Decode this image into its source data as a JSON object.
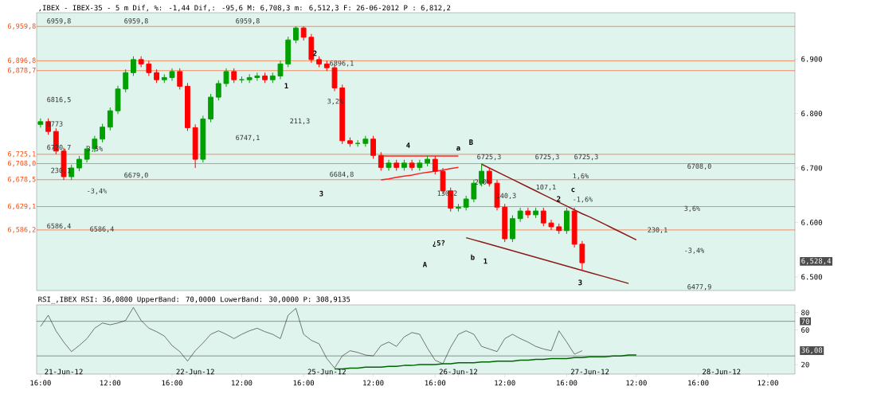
{
  "chart_data": [
    {
      "type": "candlestick",
      "title": ",IBEX - IBEX-35 - 5 m Dif, %: -1,44 Dif,: -95,6 M: 6,708,3 m: 6,512,3 F: 26-06-2012 P : 6,812,2",
      "ylim": [
        6475,
        6985
      ],
      "tick_labels": "y",
      "yticks": [
        {
          "value": 6500,
          "label": "6.500"
        },
        {
          "value": 6600,
          "label": "6.600"
        },
        {
          "value": 6700,
          "label": "6.700"
        },
        {
          "value": 6800,
          "label": "6.800"
        },
        {
          "value": 6900,
          "label": "6.900"
        }
      ],
      "categories": [
        null,
        null,
        null,
        null,
        null,
        null,
        null,
        null,
        null,
        null,
        null,
        null,
        null,
        null,
        null,
        null,
        null,
        null,
        null,
        null,
        null,
        null,
        null,
        null,
        null,
        null,
        null,
        null,
        null,
        null,
        null,
        null,
        null,
        null,
        null,
        null,
        null,
        null,
        null,
        null,
        null,
        null,
        null,
        null,
        null,
        null,
        null,
        null,
        null,
        null,
        null,
        null,
        null,
        null,
        null,
        null,
        null,
        null,
        null,
        null,
        null,
        null,
        null,
        null,
        null,
        null,
        null,
        null,
        null,
        null,
        null,
        null,
        null,
        null,
        null,
        null,
        null,
        null,
        null,
        null,
        null,
        null,
        null,
        null,
        null,
        null,
        null,
        null,
        null,
        null,
        null,
        null,
        null,
        null,
        null,
        null,
        null,
        null
      ],
      "ohlc": [
        [
          6780,
          6791,
          6774,
          6785
        ],
        [
          6785,
          6791,
          6761,
          6767
        ],
        [
          6767,
          6773,
          6725,
          6731
        ],
        [
          6731,
          6737,
          6678,
          6684
        ],
        [
          6684,
          6706,
          6678,
          6700
        ],
        [
          6700,
          6722,
          6694,
          6716
        ],
        [
          6716,
          6741,
          6710,
          6735
        ],
        [
          6735,
          6759,
          6729,
          6753
        ],
        [
          6753,
          6781,
          6747,
          6775
        ],
        [
          6775,
          6811,
          6769,
          6805
        ],
        [
          6805,
          6851,
          6799,
          6845
        ],
        [
          6845,
          6881,
          6839,
          6875
        ],
        [
          6875,
          6905,
          6869,
          6899
        ],
        [
          6899,
          6905,
          6885,
          6891
        ],
        [
          6891,
          6897,
          6869,
          6875
        ],
        [
          6875,
          6881,
          6856,
          6862
        ],
        [
          6862,
          6872,
          6856,
          6866
        ],
        [
          6866,
          6883,
          6860,
          6877
        ],
        [
          6877,
          6883,
          6844,
          6850
        ],
        [
          6850,
          6856,
          6768,
          6774
        ],
        [
          6774,
          6780,
          6700,
          6716
        ],
        [
          6716,
          6796,
          6710,
          6790
        ],
        [
          6790,
          6836,
          6784,
          6830
        ],
        [
          6830,
          6861,
          6824,
          6855
        ],
        [
          6855,
          6883,
          6849,
          6877
        ],
        [
          6877,
          6883,
          6856,
          6862
        ],
        [
          6862,
          6868,
          6856,
          6862
        ],
        [
          6862,
          6872,
          6856,
          6866
        ],
        [
          6866,
          6875,
          6860,
          6869
        ],
        [
          6869,
          6875,
          6856,
          6862
        ],
        [
          6862,
          6875,
          6856,
          6869
        ],
        [
          6869,
          6897,
          6863,
          6891
        ],
        [
          6891,
          6941,
          6885,
          6935
        ],
        [
          6935,
          6960,
          6929,
          6957
        ],
        [
          6957,
          6960,
          6934,
          6940
        ],
        [
          6940,
          6946,
          6893,
          6899
        ],
        [
          6899,
          6905,
          6885,
          6891
        ],
        [
          6891,
          6897,
          6878,
          6884
        ],
        [
          6884,
          6890,
          6841,
          6847
        ],
        [
          6847,
          6853,
          6744,
          6750
        ],
        [
          6750,
          6756,
          6739,
          6745
        ],
        [
          6745,
          6751,
          6739,
          6745
        ],
        [
          6745,
          6759,
          6739,
          6753
        ],
        [
          6753,
          6759,
          6717,
          6723
        ],
        [
          6723,
          6729,
          6695,
          6701
        ],
        [
          6701,
          6715,
          6695,
          6709
        ],
        [
          6709,
          6715,
          6695,
          6701
        ],
        [
          6701,
          6715,
          6695,
          6709
        ],
        [
          6709,
          6715,
          6695,
          6701
        ],
        [
          6701,
          6715,
          6695,
          6709
        ],
        [
          6709,
          6722,
          6703,
          6716
        ],
        [
          6716,
          6722,
          6688,
          6694
        ],
        [
          6694,
          6700,
          6652,
          6658
        ],
        [
          6658,
          6664,
          6620,
          6626
        ],
        [
          6626,
          6634,
          6620,
          6628
        ],
        [
          6628,
          6649,
          6622,
          6643
        ],
        [
          6643,
          6678,
          6637,
          6672
        ],
        [
          6672,
          6708,
          6666,
          6694
        ],
        [
          6694,
          6700,
          6666,
          6672
        ],
        [
          6672,
          6678,
          6622,
          6628
        ],
        [
          6628,
          6634,
          6564,
          6570
        ],
        [
          6570,
          6613,
          6564,
          6607
        ],
        [
          6607,
          6627,
          6601,
          6621
        ],
        [
          6621,
          6627,
          6608,
          6614
        ],
        [
          6614,
          6627,
          6608,
          6621
        ],
        [
          6621,
          6627,
          6593,
          6599
        ],
        [
          6599,
          6605,
          6586,
          6592
        ],
        [
          6592,
          6598,
          6579,
          6585
        ],
        [
          6585,
          6627,
          6579,
          6621
        ],
        [
          6621,
          6627,
          6554,
          6560
        ],
        [
          6560,
          6566,
          6512,
          6526
        ],
        null,
        null,
        null,
        null,
        null,
        null,
        null,
        null,
        null,
        null,
        null,
        null,
        null,
        null,
        null,
        null,
        null,
        null,
        null,
        null,
        null,
        null,
        null,
        null,
        null,
        null,
        null
      ],
      "colors": [
        "#00a000",
        "#ff0000",
        "#ff0000",
        "#ff0000",
        "#00a000",
        "#00a000",
        "#00a000",
        "#00a000",
        "#00a000",
        "#00a000",
        "#00a000",
        "#00a000",
        "#00a000",
        "#ff0000",
        "#ff0000",
        "#ff0000",
        "#00a000",
        "#00a000",
        "#ff0000",
        "#ff0000",
        "#ff0000",
        "#00a000",
        "#00a000",
        "#00a000",
        "#00a000",
        "#ff0000",
        "#00a000",
        "#00a000",
        "#00a000",
        "#ff0000",
        "#00a000",
        "#00a000",
        "#00a000",
        "#00a000",
        "#ff0000",
        "#ff0000",
        "#ff0000",
        "#ff0000",
        "#ff0000",
        "#ff0000",
        "#ff0000",
        "#00a000",
        "#00a000",
        "#ff0000",
        "#ff0000",
        "#00a000",
        "#ff0000",
        "#00a000",
        "#ff0000",
        "#00a000",
        "#00a000",
        "#ff0000",
        "#ff0000",
        "#ff0000",
        "#00a000",
        "#00a000",
        "#00a000",
        "#00a000",
        "#ff0000",
        "#ff0000",
        "#ff0000",
        "#00a000",
        "#00a000",
        "#ff0000",
        "#00a000",
        "#ff0000",
        "#ff0000",
        "#ff0000",
        "#00a000",
        "#ff0000",
        "#ff0000",
        null,
        null,
        null,
        null,
        null,
        null,
        null,
        null,
        null,
        null,
        null,
        null,
        null,
        null,
        null,
        null,
        null,
        null,
        null,
        null,
        null,
        null,
        null,
        null,
        null,
        null,
        null
      ],
      "series": [
        {
          "type": "line",
          "color": "#8b1a1a",
          "values": [
            null,
            null,
            null,
            null,
            null,
            null,
            null,
            null,
            null,
            null,
            null,
            null,
            null,
            null,
            null,
            null,
            null,
            null,
            null,
            null,
            null,
            null,
            null,
            null,
            null,
            null,
            null,
            null,
            null,
            null,
            null,
            null,
            null,
            null,
            null,
            null,
            null,
            null,
            null,
            null,
            null,
            null,
            null,
            null,
            null,
            null,
            null,
            null,
            null,
            null,
            null,
            null,
            null,
            null,
            null,
            null,
            null,
            6707,
            6700,
            6693,
            6686,
            6679,
            6672,
            6665,
            6658,
            6651,
            6644,
            6637,
            6630,
            6623,
            6616,
            6610,
            6603,
            6596,
            6589,
            6582,
            6575,
            6568,
            null,
            null,
            null,
            null,
            null,
            null,
            null,
            null,
            null,
            null,
            null,
            null,
            null,
            null,
            null,
            null,
            null,
            null,
            null,
            null
          ]
        },
        {
          "type": "line",
          "color": "#8b1a1a",
          "values": [
            null,
            null,
            null,
            null,
            null,
            null,
            null,
            null,
            null,
            null,
            null,
            null,
            null,
            null,
            null,
            null,
            null,
            null,
            null,
            null,
            null,
            null,
            null,
            null,
            null,
            null,
            null,
            null,
            null,
            null,
            null,
            null,
            null,
            null,
            null,
            null,
            null,
            null,
            null,
            null,
            null,
            null,
            null,
            null,
            null,
            null,
            null,
            null,
            null,
            null,
            null,
            null,
            null,
            null,
            null,
            6572,
            6568,
            6564,
            6560,
            6556,
            6552,
            6548,
            6544,
            6540,
            6536,
            6532,
            6528,
            6524,
            6520,
            6516,
            6512,
            6508,
            6504,
            6500,
            6496,
            6492,
            6488,
            null,
            null,
            null,
            null,
            null,
            null,
            null,
            null,
            null,
            null,
            null,
            null,
            null,
            null,
            null,
            null,
            null,
            null,
            null,
            null,
            null
          ]
        },
        {
          "type": "line",
          "color": "#ff2020",
          "values": [
            null,
            null,
            null,
            null,
            null,
            null,
            null,
            null,
            null,
            null,
            null,
            null,
            null,
            null,
            null,
            null,
            null,
            null,
            null,
            null,
            null,
            null,
            null,
            null,
            null,
            null,
            null,
            null,
            null,
            null,
            null,
            null,
            null,
            null,
            null,
            null,
            null,
            null,
            null,
            null,
            null,
            null,
            null,
            null,
            6722,
            6722,
            6722,
            6722,
            6722,
            6722,
            6722,
            6722,
            6722,
            6722,
            6722,
            null,
            null,
            null,
            null,
            null,
            null,
            null,
            null,
            null,
            null,
            null,
            null,
            null,
            null,
            null,
            null,
            null,
            null,
            null,
            null,
            null,
            null,
            null,
            null,
            null,
            null,
            null,
            null,
            null,
            null,
            null,
            null,
            null,
            null,
            null,
            null,
            null,
            null,
            null,
            null,
            null,
            null,
            null
          ]
        },
        {
          "type": "line",
          "color": "#ff2020",
          "values": [
            null,
            null,
            null,
            null,
            null,
            null,
            null,
            null,
            null,
            null,
            null,
            null,
            null,
            null,
            null,
            null,
            null,
            null,
            null,
            null,
            null,
            null,
            null,
            null,
            null,
            null,
            null,
            null,
            null,
            null,
            null,
            null,
            null,
            null,
            null,
            null,
            null,
            null,
            null,
            null,
            null,
            null,
            null,
            null,
            6678,
            6680,
            6683,
            6685,
            6687,
            6690,
            6692,
            6694,
            6696,
            6699,
            6701,
            null,
            null,
            null,
            null,
            null,
            null,
            null,
            null,
            null,
            null,
            null,
            null,
            null,
            null,
            null,
            null,
            null,
            null,
            null,
            null,
            null,
            null,
            null,
            null,
            null,
            null,
            null,
            null,
            null,
            null,
            null,
            null,
            null,
            null,
            null,
            null,
            null,
            null,
            null,
            null,
            null,
            null,
            null
          ]
        }
      ],
      "ref_lines": [
        {
          "axis": "y",
          "value": 6959.8,
          "label": "6,959,8",
          "color": "#ff4500"
        },
        {
          "axis": "y",
          "value": 6896.8,
          "label": "6,896,8",
          "color": "#ff4500"
        },
        {
          "axis": "y",
          "value": 6878.7,
          "label": "6,878,7",
          "color": "#ff4500"
        },
        {
          "axis": "y",
          "value": 6725.1,
          "label": "6,725,1",
          "color": "#ff4500"
        },
        {
          "axis": "y",
          "value": 6708.0,
          "label": "6,708,0",
          "color": "#ff4500"
        },
        {
          "axis": "y",
          "value": 6678.5,
          "label": "6,678,5",
          "color": "#ff4500"
        },
        {
          "axis": "y",
          "value": 6629.1,
          "label": "6,629,1",
          "color": "#ff4500"
        },
        {
          "axis": "y",
          "value": 6586.2,
          "label": "6,586,2",
          "color": "#ff4500"
        }
      ],
      "annotations": [
        "6959,8",
        "6959,8",
        "6959,8",
        "6816,5",
        "6773",
        "6720,7",
        "230,1",
        "3,5%",
        "-3,4%",
        "6586,4",
        "6586,4",
        "6679,0",
        "6896,1",
        "3,2%",
        "211,3",
        "6747,1",
        "6684,8",
        "1",
        "2",
        "3",
        "4",
        "a",
        "B",
        "6725,3",
        "6725,3",
        "6725,3",
        "2,0%",
        "130,2",
        "140,3",
        "107,1",
        "1,6%",
        "c",
        "-1,6%",
        "2",
        "¿5?",
        "A",
        "b",
        "1",
        "3",
        "230,1",
        "3,6%",
        "-3,4%",
        "6708,0",
        "6477,9",
        "6,528,4"
      ]
    },
    {
      "type": "line",
      "title": "RSI_,IBEX RSI: 36,0800 UpperBand: 70,0000 LowerBand: 30,0000 P: 308,9135",
      "ylim": [
        9,
        89
      ],
      "yticks": [
        20,
        60,
        80
      ],
      "categories": [
        "16:00",
        null,
        null,
        "21-Jun-12",
        null,
        null,
        null,
        null,
        null,
        "12:00",
        null,
        null,
        null,
        null,
        null,
        null,
        null,
        "16:00",
        null,
        null,
        "22-Jun-12",
        null,
        null,
        null,
        null,
        null,
        "12:00",
        null,
        null,
        null,
        null,
        null,
        null,
        null,
        "16:00",
        null,
        null,
        "25-Jun-12",
        null,
        null,
        null,
        null,
        null,
        "12:00",
        null,
        null,
        null,
        null,
        null,
        null,
        null,
        "16:00",
        null,
        null,
        "26-Jun-12",
        null,
        null,
        null,
        null,
        null,
        "12:00",
        null,
        null,
        null,
        null,
        null,
        null,
        null,
        "16:00",
        null,
        null,
        "27-Jun-12",
        null,
        null,
        null,
        null,
        null,
        "12:00",
        null,
        null,
        null,
        null,
        null,
        null,
        null,
        "16:00",
        null,
        null,
        "28-Jun-12",
        null,
        null,
        null,
        null,
        null,
        "12:00",
        null,
        null,
        null
      ],
      "series": [
        {
          "color": "#202020",
          "values": [
            64,
            77,
            59,
            46,
            35,
            42,
            50,
            62,
            68,
            66,
            68,
            71,
            86,
            71,
            62,
            58,
            53,
            42,
            35,
            24,
            36,
            45,
            55,
            59,
            55,
            50,
            55,
            59,
            62,
            58,
            55,
            50,
            77,
            85,
            55,
            48,
            44,
            27,
            16,
            30,
            36,
            34,
            31,
            30,
            42,
            46,
            41,
            52,
            57,
            55,
            39,
            25,
            21,
            40,
            55,
            59,
            55,
            41,
            38,
            35,
            50,
            55,
            50,
            46,
            41,
            38,
            36,
            59,
            46,
            32,
            36,
            null,
            null,
            null,
            null,
            null,
            null,
            null,
            null,
            null,
            null,
            null,
            null,
            null,
            null,
            null,
            null,
            null,
            null,
            null,
            null,
            null,
            null,
            null,
            null,
            null,
            null,
            null
          ]
        },
        {
          "color": "#006400",
          "values": [
            null,
            null,
            null,
            null,
            null,
            null,
            null,
            null,
            null,
            null,
            null,
            null,
            null,
            null,
            null,
            null,
            null,
            null,
            null,
            null,
            null,
            null,
            null,
            null,
            null,
            null,
            null,
            null,
            null,
            null,
            null,
            null,
            null,
            null,
            null,
            null,
            null,
            null,
            15,
            15,
            16,
            16,
            17,
            17,
            17,
            18,
            18,
            19,
            19,
            20,
            20,
            20,
            21,
            21,
            22,
            22,
            22,
            23,
            23,
            24,
            24,
            24,
            25,
            25,
            26,
            26,
            27,
            27,
            27,
            28,
            28,
            29,
            29,
            29,
            30,
            30,
            31,
            31,
            null,
            null,
            null,
            null,
            null,
            null,
            null,
            null,
            null,
            null,
            null,
            null,
            null,
            null,
            null,
            null,
            null,
            null,
            null,
            null
          ]
        }
      ],
      "ref_lines": [
        {
          "axis": "y",
          "value": 70,
          "color": "#505050"
        },
        {
          "axis": "y",
          "value": 30,
          "color": "#505050"
        }
      ],
      "annotations": [
        "70",
        "36,08"
      ]
    }
  ]
}
